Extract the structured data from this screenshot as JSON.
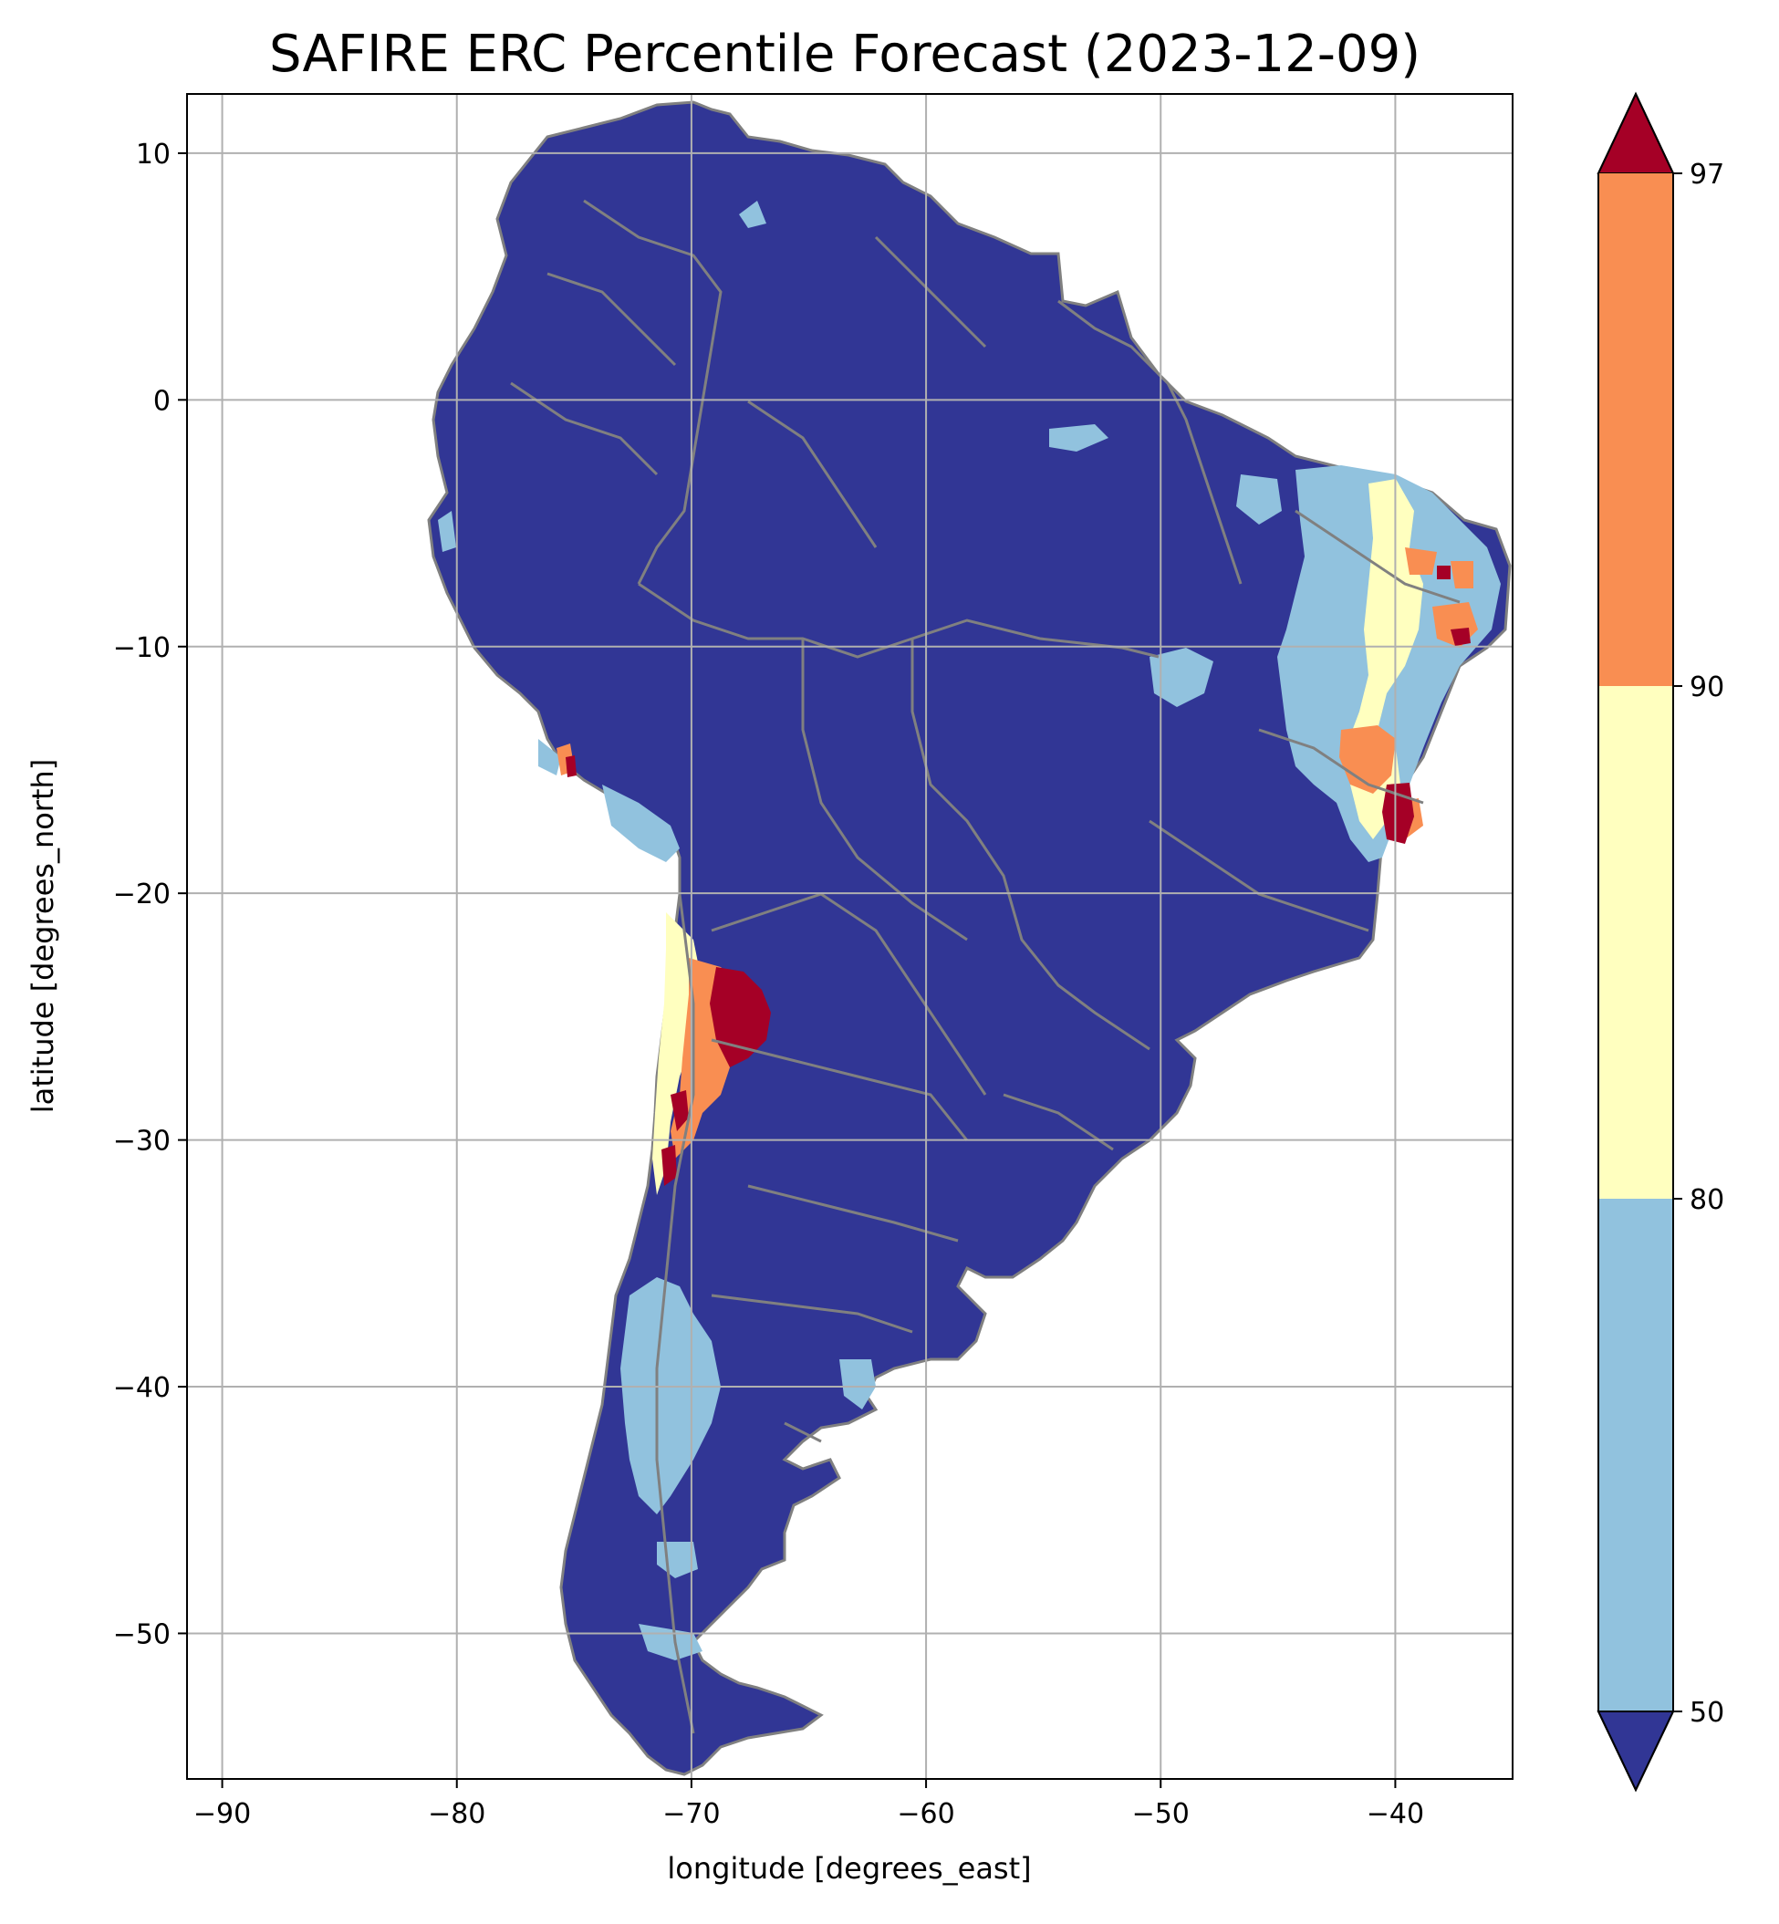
{
  "title": "SAFIRE ERC Percentile Forecast (2023-12-09)",
  "x_axis": {
    "label": "longitude [degrees_east]",
    "ticks": [
      -90,
      -80,
      -70,
      -60,
      -50,
      -40
    ],
    "tick_labels": [
      "−90",
      "−80",
      "−70",
      "−60",
      "−50",
      "−40"
    ],
    "range": [
      -91.5,
      -35
    ]
  },
  "y_axis": {
    "label": "latitude [degrees_north]",
    "ticks": [
      10,
      0,
      -10,
      -20,
      -30,
      -40,
      -50
    ],
    "tick_labels": [
      "10",
      "0",
      "−10",
      "−20",
      "−30",
      "−40",
      "−50"
    ],
    "range": [
      -55.9,
      12.4
    ]
  },
  "grid": true,
  "colorbar": {
    "placement": "right",
    "extend": "both",
    "levels": [
      50,
      80,
      90,
      97
    ],
    "tick_labels": [
      "50",
      "80",
      "90",
      "97"
    ],
    "colors": {
      "under": "#313695",
      "band_50_80": "#91c2de",
      "band_80_90": "#ffffbf",
      "band_90_97": "#f98e52",
      "over": "#a50026"
    }
  },
  "map": {
    "region": "South America",
    "background_class_color": "#313695",
    "border_color": "#808080",
    "hotspots": [
      {
        "area": "northeast Brazil",
        "lon": -39,
        "lat": -8,
        "level": "50-80"
      },
      {
        "area": "eastern Brazil",
        "lon": -40,
        "lat": -17,
        "level": ">97"
      },
      {
        "area": "northern Chile / Argentina Andes",
        "lon": -69,
        "lat": -25,
        "level": ">97"
      },
      {
        "area": "central Chile",
        "lon": -71,
        "lat": -29,
        "level": ">97"
      },
      {
        "area": "southern Peru coast",
        "lon": -75.5,
        "lat": -14.5,
        "level": ">97"
      },
      {
        "area": "Patagonia",
        "lon": -70,
        "lat": -42,
        "level": "50-80"
      }
    ]
  }
}
